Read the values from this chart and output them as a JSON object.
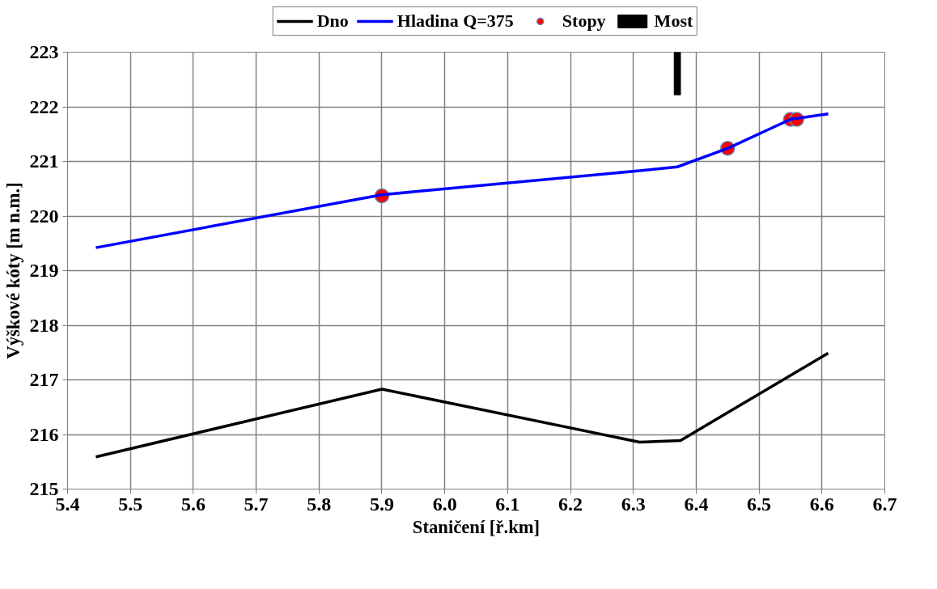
{
  "chart_data": {
    "type": "line",
    "xlabel": "Staničení [ř.km]",
    "ylabel": "Výškové kóty [m n.m.]",
    "xlim": [
      5.4,
      6.7
    ],
    "xticks": [
      {
        "value": 5.4,
        "label": "5.4"
      },
      {
        "value": 5.5,
        "label": "5.5"
      },
      {
        "value": 5.6,
        "label": "5.6"
      },
      {
        "value": 5.7,
        "label": "5.7"
      },
      {
        "value": 5.8,
        "label": "5.8"
      },
      {
        "value": 5.9,
        "label": "5.9"
      },
      {
        "value": 6.0,
        "label": "6.0"
      },
      {
        "value": 6.1,
        "label": "6.1"
      },
      {
        "value": 6.2,
        "label": "6.2"
      },
      {
        "value": 6.3,
        "label": "6.3"
      },
      {
        "value": 6.4,
        "label": "6.4"
      },
      {
        "value": 6.5,
        "label": "6.5"
      },
      {
        "value": 6.6,
        "label": "6.6"
      },
      {
        "value": 6.7,
        "label": "6.7"
      }
    ],
    "ylim": [
      215,
      223
    ],
    "yticks": [
      215,
      216,
      217,
      218,
      219,
      220,
      221,
      222,
      223
    ],
    "grid": true,
    "legend": "top",
    "series": [
      {
        "name": "Dno",
        "color": "#000000",
        "x": [
          5.445,
          5.9,
          6.31,
          6.375,
          6.61
        ],
        "values": [
          215.59,
          216.83,
          215.86,
          215.89,
          217.49
        ]
      },
      {
        "name": "Hladina Q=375",
        "color": "#0000ff",
        "x": [
          5.445,
          5.9,
          6.31,
          6.37,
          6.45,
          6.55,
          6.61
        ],
        "values": [
          219.42,
          220.39,
          220.83,
          220.9,
          221.24,
          221.77,
          221.87
        ]
      },
      {
        "name": "Stopy",
        "type": "scatter",
        "marker": "circle",
        "color": "#ff0000",
        "x": [
          5.9,
          6.45,
          6.55,
          6.56
        ],
        "values": [
          220.37,
          221.24,
          221.77,
          221.77
        ]
      },
      {
        "name": "Most",
        "type": "bar",
        "color": "#000000",
        "x": [
          6.37
        ],
        "base": [
          222.22
        ],
        "values": [
          0.78
        ]
      }
    ]
  }
}
